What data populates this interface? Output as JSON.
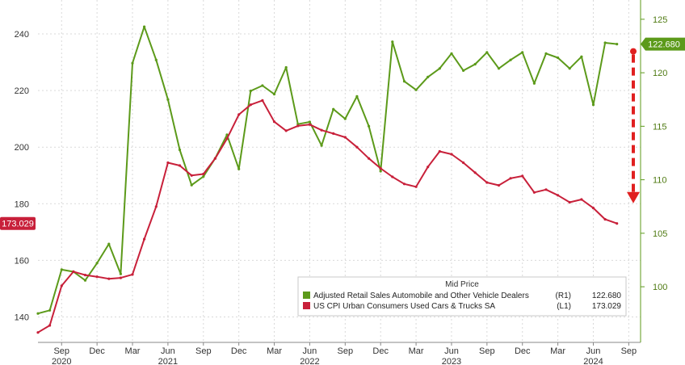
{
  "chart_data": {
    "type": "line",
    "x": [
      "2020-07",
      "2020-08",
      "2020-09",
      "2020-10",
      "2020-11",
      "2020-12",
      "2021-01",
      "2021-02",
      "2021-03",
      "2021-04",
      "2021-05",
      "2021-06",
      "2021-07",
      "2021-08",
      "2021-09",
      "2021-10",
      "2021-11",
      "2021-12",
      "2022-01",
      "2022-02",
      "2022-03",
      "2022-04",
      "2022-05",
      "2022-06",
      "2022-07",
      "2022-08",
      "2022-09",
      "2022-10",
      "2022-11",
      "2022-12",
      "2023-01",
      "2023-02",
      "2023-03",
      "2023-04",
      "2023-05",
      "2023-06",
      "2023-07",
      "2023-08",
      "2023-09",
      "2023-10",
      "2023-11",
      "2023-12",
      "2024-01",
      "2024-02",
      "2024-03",
      "2024-04",
      "2024-05",
      "2024-06",
      "2024-07",
      "2024-08"
    ],
    "x_tick_labels": [
      {
        "x": "2020-09",
        "label": "Sep"
      },
      {
        "x": "2020-12",
        "label": "Dec"
      },
      {
        "x": "2021-03",
        "label": "Mar"
      },
      {
        "x": "2021-06",
        "label": "Jun"
      },
      {
        "x": "2021-09",
        "label": "Sep"
      },
      {
        "x": "2021-12",
        "label": "Dec"
      },
      {
        "x": "2022-03",
        "label": "Mar"
      },
      {
        "x": "2022-06",
        "label": "Jun"
      },
      {
        "x": "2022-09",
        "label": "Sep"
      },
      {
        "x": "2022-12",
        "label": "Dec"
      },
      {
        "x": "2023-03",
        "label": "Mar"
      },
      {
        "x": "2023-06",
        "label": "Jun"
      },
      {
        "x": "2023-09",
        "label": "Sep"
      },
      {
        "x": "2023-12",
        "label": "Dec"
      },
      {
        "x": "2024-03",
        "label": "Mar"
      },
      {
        "x": "2024-06",
        "label": "Jun"
      },
      {
        "x": "2024-09",
        "label": "Sep"
      }
    ],
    "year_labels": [
      {
        "x": "2020-09",
        "label": "2020"
      },
      {
        "x": "2021-06",
        "label": "2021"
      },
      {
        "x": "2022-06",
        "label": "2022"
      },
      {
        "x": "2023-06",
        "label": "2023"
      },
      {
        "x": "2024-06",
        "label": "2024"
      }
    ],
    "x_range": [
      "2020-07",
      "2024-10"
    ],
    "y_left": {
      "range": [
        131,
        252
      ],
      "ticks": [
        140,
        160,
        180,
        200,
        220,
        240
      ]
    },
    "y_right": {
      "range": [
        94.8,
        126.8
      ],
      "ticks": [
        100,
        105,
        110,
        115,
        120,
        125
      ]
    },
    "series": [
      {
        "name": "Adjusted Retail Sales Automobile and Other Vehicle Dealers",
        "axis": "right",
        "axis_tag": "(R1)",
        "color": "#5c9a1a",
        "last_value_label": "122.680",
        "values": [
          97.5,
          97.8,
          101.6,
          101.4,
          100.6,
          102.2,
          104.0,
          101.2,
          120.9,
          124.3,
          121.2,
          117.5,
          112.8,
          109.5,
          110.3,
          112.0,
          114.2,
          111.0,
          118.3,
          118.8,
          118.0,
          120.5,
          115.2,
          115.4,
          113.2,
          116.6,
          115.7,
          117.8,
          115.0,
          110.8,
          122.9,
          119.2,
          118.4,
          119.6,
          120.4,
          121.8,
          120.2,
          120.8,
          121.9,
          120.4,
          121.2,
          121.9,
          119.0,
          121.8,
          121.4,
          120.4,
          121.5,
          117.0,
          122.8,
          122.68
        ]
      },
      {
        "name": "US CPI Urban Consumers Used Cars & Trucks SA",
        "axis": "left",
        "axis_tag": "(L1)",
        "color": "#c8203a",
        "last_value_label": "173.029",
        "values": [
          134.5,
          137.0,
          151.0,
          156.0,
          154.8,
          154.2,
          153.5,
          153.8,
          155.0,
          167.5,
          179.0,
          194.5,
          193.5,
          190.0,
          190.5,
          196.0,
          203.0,
          211.5,
          215.0,
          216.5,
          209.0,
          205.8,
          207.5,
          208.0,
          206.0,
          204.8,
          203.5,
          200.0,
          196.0,
          192.5,
          189.5,
          187.0,
          186.0,
          193.0,
          198.5,
          197.5,
          194.5,
          191.0,
          187.5,
          186.5,
          189.0,
          189.8,
          184.0,
          185.0,
          183.0,
          180.5,
          181.5,
          178.5,
          174.5,
          173.029
        ]
      }
    ],
    "legend": {
      "title": "Mid Price",
      "placement": "bottom-right",
      "entries": [
        {
          "label": "Adjusted Retail Sales Automobile and Other Vehicle Dealers",
          "tag": "(R1)",
          "value": "122.680",
          "color": "#5c9a1a"
        },
        {
          "label": "US CPI Urban Consumers Used Cars & Trucks SA",
          "tag": "(L1)",
          "value": "173.029",
          "color": "#c8203a"
        }
      ]
    },
    "annotation": {
      "type": "dashed-down-arrow",
      "color": "#e02020",
      "from": "2024-09",
      "y_right_top": 122.0,
      "y_right_bottom": 107.8
    },
    "grid": true
  }
}
